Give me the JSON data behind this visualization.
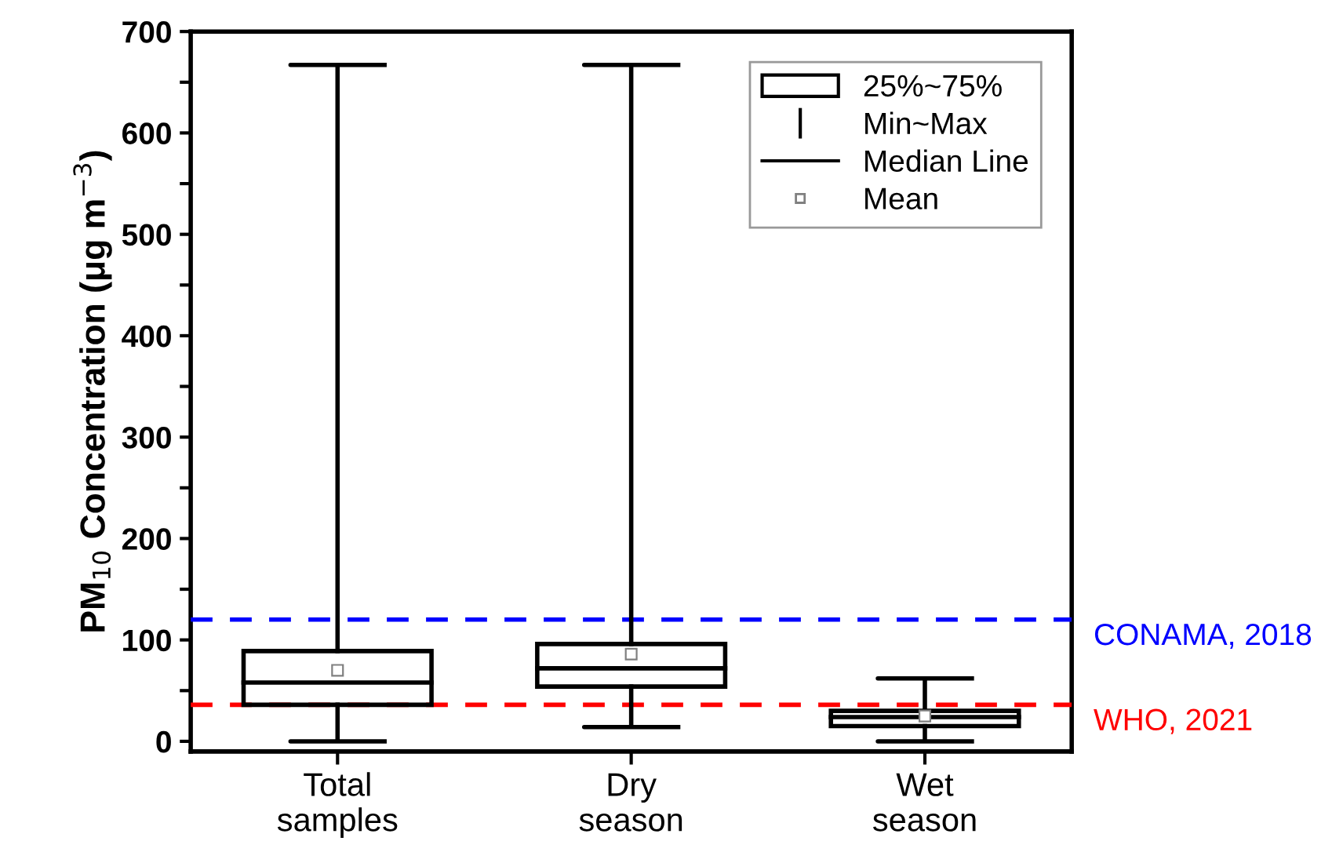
{
  "chart_data": {
    "type": "box",
    "ylabel": "PM$_{10}$ Concentration (μg m$^{−3}$)",
    "categories": [
      "Total\nsamples",
      "Dry\nseason",
      "Wet\nseason"
    ],
    "boxes": [
      {
        "low": 0,
        "q1": 36,
        "median": 58,
        "q3": 89,
        "high": 667,
        "mean": 70
      },
      {
        "low": 14,
        "q1": 54,
        "median": 72,
        "q3": 96,
        "high": 667,
        "mean": 86
      },
      {
        "low": 0,
        "q1": 15,
        "median": 24,
        "q3": 30,
        "high": 62,
        "mean": 25
      }
    ],
    "annotations": [
      "25%~75%",
      "Min~Max",
      "Median Line",
      "Mean"
    ],
    "ylim": [
      -10,
      700
    ],
    "yticks": [
      0,
      {
        "value": 50,
        "label": null
      },
      100,
      {
        "value": 150,
        "label": null
      },
      200,
      {
        "value": 250,
        "label": null
      },
      300,
      {
        "value": 350,
        "label": null
      },
      400,
      {
        "value": 450,
        "label": null
      },
      500,
      {
        "value": 550,
        "label": null
      },
      600,
      {
        "value": 650,
        "label": null
      },
      700
    ],
    "ref_lines": [
      {
        "axis": "y",
        "value": 120,
        "label": "CONAMA, 2018",
        "color": "#0000ff",
        "line_style": "dashed"
      },
      {
        "axis": "y",
        "value": 36,
        "label": "WHO, 2021",
        "color": "#ff0000",
        "line_style": "dashed"
      }
    ],
    "grid": false
  }
}
